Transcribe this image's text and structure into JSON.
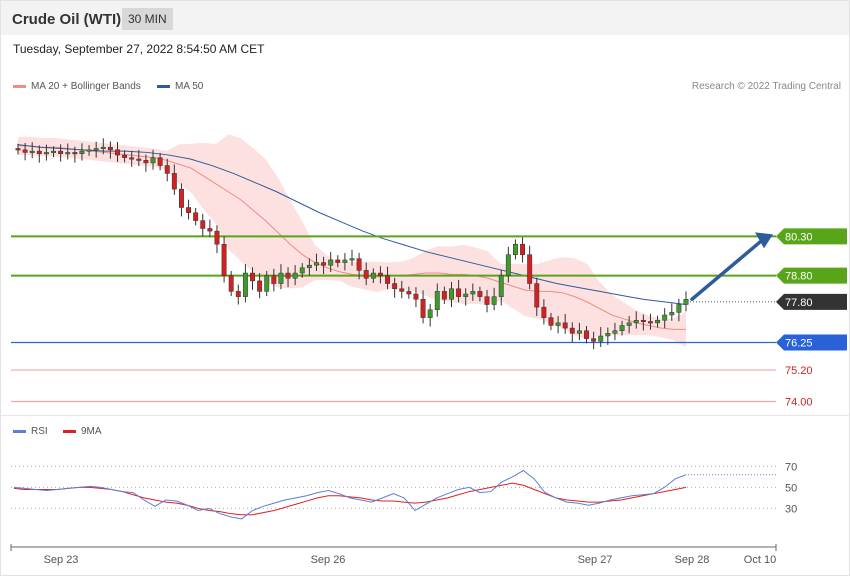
{
  "header": {
    "title": "Crude Oil (WTI)",
    "timeframe": "30 MIN",
    "datetime": "Tuesday, September 27, 2022 8:54:50 AM CET"
  },
  "legend_main": [
    {
      "label": "MA 20 + Bollinger Bands",
      "color": "#f28b82"
    },
    {
      "label": "MA 50",
      "color": "#2e5c9a"
    }
  ],
  "credit": "Research © 2022 Trading Central",
  "legend_rsi": [
    {
      "label": "RSI",
      "color": "#5b7fd6"
    },
    {
      "label": "9MA",
      "color": "#e02020"
    }
  ],
  "colors": {
    "up_candle": "#3e9b2a",
    "down_candle": "#d32020",
    "resistance": "#58a51a",
    "support": "#2962d8",
    "current": "#333333",
    "minor_support": "#f3a6a6",
    "bollinger_fill": "#fde0e0",
    "projection_arrow": "#2e5c9a"
  },
  "chart_data": [
    {
      "type": "candlestick",
      "title": "Crude Oil (WTI)",
      "timeframe": "30 MIN",
      "ylim": [
        73.6,
        85.5
      ],
      "x_tick_labels": [
        "Sep 23",
        "Sep 26",
        "Sep 27",
        "Sep 28",
        "Oct 10"
      ],
      "levels": [
        {
          "value": 80.3,
          "label": "80.30",
          "kind": "resistance"
        },
        {
          "value": 78.8,
          "label": "78.80",
          "kind": "resistance"
        },
        {
          "value": 77.8,
          "label": "77.80",
          "kind": "current"
        },
        {
          "value": 76.25,
          "label": "76.25",
          "kind": "support"
        },
        {
          "value": 75.2,
          "label": "75.20",
          "kind": "minor_support"
        },
        {
          "value": 74.0,
          "label": "74.00",
          "kind": "minor_support"
        }
      ],
      "closes": [
        83.6,
        83.5,
        83.55,
        83.45,
        83.5,
        83.55,
        83.45,
        83.5,
        83.45,
        83.55,
        83.6,
        83.65,
        83.7,
        83.6,
        83.4,
        83.3,
        83.25,
        83.2,
        83.1,
        83.3,
        83.0,
        82.7,
        82.1,
        81.4,
        81.2,
        80.9,
        80.6,
        80.5,
        80.0,
        78.8,
        78.2,
        78.0,
        78.9,
        78.6,
        78.2,
        78.8,
        78.5,
        78.9,
        78.7,
        78.9,
        79.1,
        79.2,
        79.3,
        79.2,
        79.4,
        79.3,
        79.4,
        79.45,
        79.0,
        78.7,
        78.9,
        78.8,
        78.5,
        78.3,
        78.2,
        78.1,
        77.9,
        77.2,
        77.5,
        78.2,
        77.9,
        78.3,
        78.0,
        78.1,
        78.2,
        78.0,
        77.7,
        78.0,
        78.8,
        79.6,
        80.0,
        79.6,
        78.5,
        77.6,
        77.2,
        76.9,
        77.0,
        76.8,
        76.6,
        76.7,
        76.4,
        76.3,
        76.5,
        76.6,
        76.7,
        76.9,
        77.0,
        77.1,
        77.05,
        77.0,
        77.1,
        77.3,
        77.4,
        77.7,
        77.9
      ],
      "ma20": [
        83.75,
        83.75,
        83.7,
        83.7,
        83.65,
        83.6,
        83.55,
        83.5,
        83.45,
        83.4,
        83.35,
        83.3,
        83.2,
        83.05,
        82.9,
        82.6,
        82.3,
        82.0,
        81.7,
        81.3,
        80.9,
        80.45,
        80.0,
        79.6,
        79.3,
        79.1,
        78.95,
        78.85,
        78.8,
        78.75,
        78.8,
        78.8,
        78.85,
        78.9,
        78.9,
        78.85,
        78.85,
        78.8,
        78.7,
        78.55,
        78.4,
        78.25,
        78.2,
        78.2,
        78.15,
        78.0,
        77.8,
        77.55,
        77.3,
        77.15,
        77.0,
        76.9,
        76.8,
        76.75,
        76.75
      ],
      "ma50": [
        83.8,
        83.7,
        83.65,
        83.6,
        83.55,
        83.55,
        83.5,
        83.4,
        83.25,
        83.0,
        82.7,
        82.35,
        82.0,
        81.6,
        81.2,
        80.85,
        80.5,
        80.2,
        79.95,
        79.7,
        79.5,
        79.3,
        79.1,
        78.9,
        78.7,
        78.5,
        78.35,
        78.2,
        78.05,
        77.9,
        77.8,
        77.7
      ],
      "rsi": [
        50,
        49,
        48,
        47,
        48,
        49,
        50,
        51,
        50,
        48,
        46,
        45,
        38,
        32,
        38,
        37,
        33,
        28,
        30,
        25,
        22,
        20,
        28,
        32,
        35,
        38,
        40,
        42,
        45,
        47,
        44,
        40,
        38,
        36,
        40,
        44,
        40,
        28,
        34,
        40,
        44,
        48,
        50,
        45,
        46,
        55,
        60,
        66,
        58,
        45,
        40,
        36,
        35,
        33,
        35,
        38,
        40,
        42,
        43,
        44,
        50,
        58,
        62
      ],
      "rsi_9ma": [
        49,
        48,
        48,
        48,
        48,
        49,
        50,
        50,
        49,
        48,
        46,
        43,
        40,
        38,
        36,
        35,
        33,
        30,
        28,
        27,
        25,
        24,
        24,
        26,
        28,
        31,
        34,
        37,
        40,
        42,
        42,
        41,
        40,
        38,
        37,
        37,
        36,
        35,
        36,
        38,
        40,
        43,
        46,
        48,
        50,
        52,
        54,
        52,
        48,
        44,
        40,
        38,
        37,
        36,
        36,
        37,
        38,
        40,
        42,
        44,
        46,
        48,
        50
      ],
      "rsi_levels": [
        70,
        50,
        30
      ],
      "rsi_ylim": [
        0,
        95
      ]
    }
  ]
}
